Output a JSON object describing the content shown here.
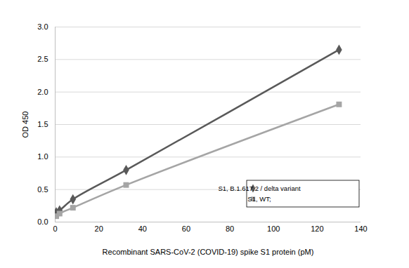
{
  "chart_data": {
    "type": "line",
    "x_label": "Recombinant SARS-CoV-2 (COVID-19) spike S1 protein (pM)",
    "y_label": "OD 450",
    "x": [
      0.51,
      2.03,
      8.13,
      32.5,
      130
    ],
    "series": [
      {
        "name": "S1, B.1.617.2 / delta variant",
        "color": "#595959",
        "marker": "diamond",
        "values": [
          0.15,
          0.18,
          0.35,
          0.8,
          2.65
        ]
      },
      {
        "name": "S1, WT;",
        "color": "#a5a5a5",
        "marker": "square",
        "values": [
          0.09,
          0.13,
          0.22,
          0.57,
          1.81
        ]
      }
    ],
    "xlim": [
      0,
      140
    ],
    "xticks": [
      0,
      20,
      40,
      60,
      80,
      100,
      120,
      140
    ],
    "ylim": [
      0,
      3
    ],
    "yticks": [
      0,
      0.5,
      1,
      1.5,
      2,
      2.5,
      3
    ],
    "grid": true,
    "legend": "bottom-right"
  }
}
